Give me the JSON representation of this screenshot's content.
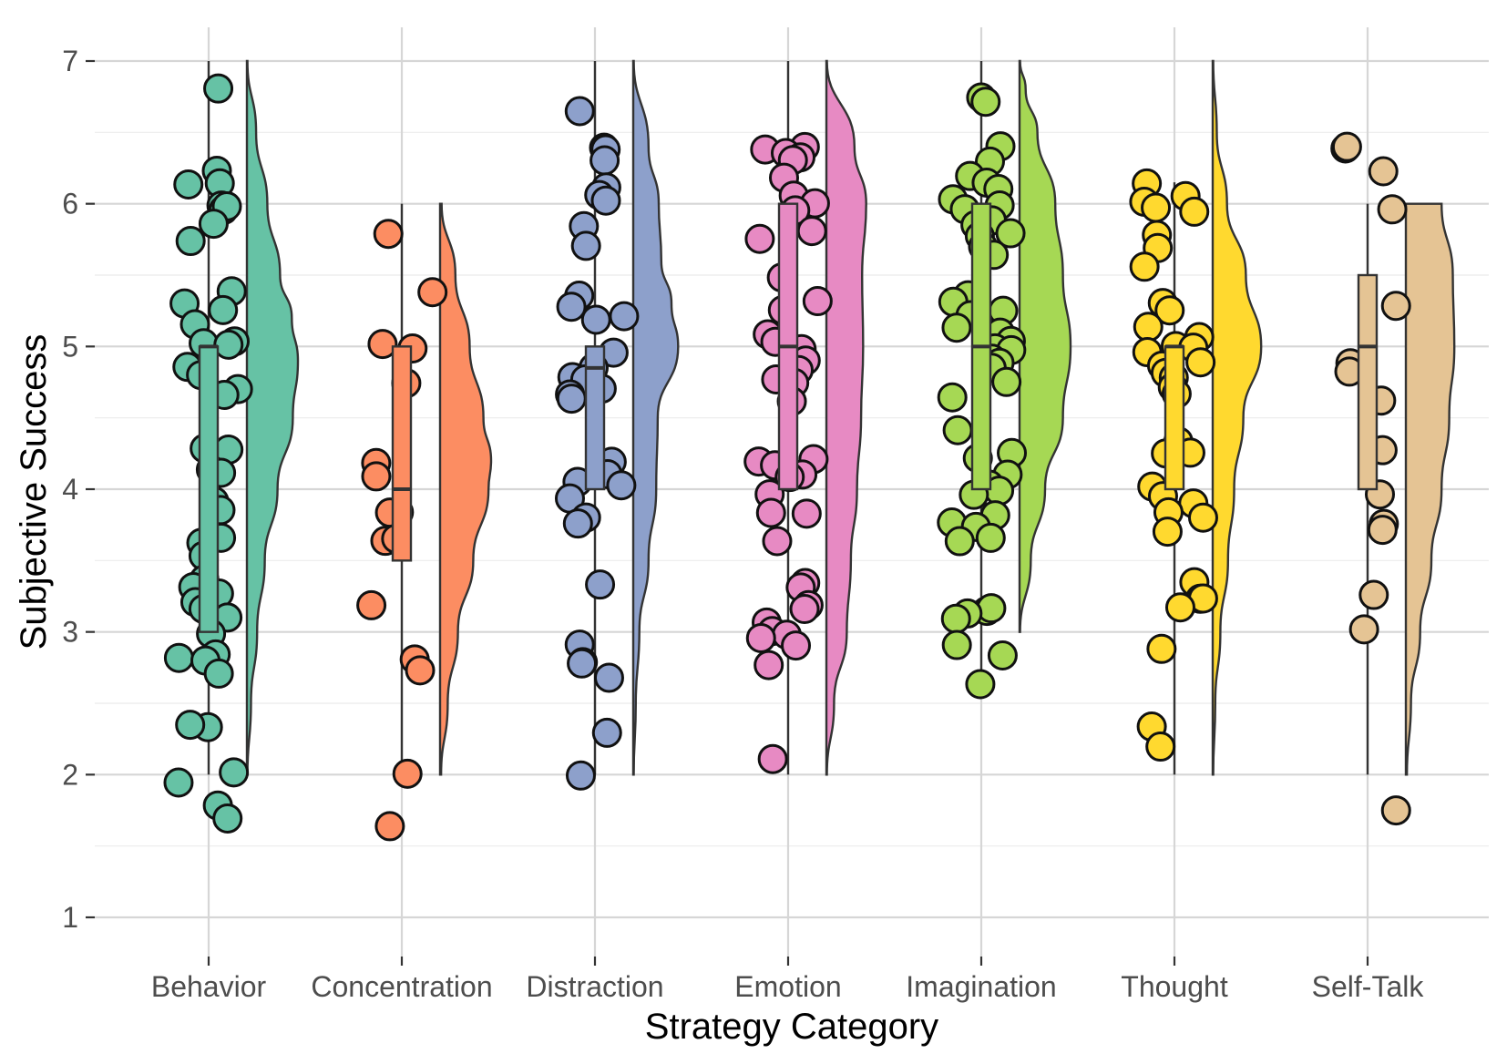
{
  "chart_data": {
    "type": "raincloud",
    "xlabel": "Strategy Category",
    "ylabel": "Subjective Success",
    "ylim": [
      0.7,
      7.0
    ],
    "yticks": [
      1,
      2,
      3,
      4,
      5,
      6,
      7
    ],
    "grid": true,
    "categories": [
      {
        "name": "Behavior",
        "color": "#66c2a5",
        "box": {
          "min": 2.0,
          "q1": 3.0,
          "median": 5.0,
          "q3": 5.0,
          "max": 7.0
        },
        "points": [
          6.8,
          6.25,
          6.15,
          6.15,
          6.0,
          5.95,
          5.97,
          5.85,
          5.75,
          5.4,
          5.3,
          5.25,
          5.15,
          5.05,
          5.02,
          5.0,
          4.85,
          4.8,
          4.7,
          4.65,
          4.3,
          4.27,
          4.15,
          4.1,
          3.9,
          3.85,
          3.65,
          3.62,
          3.55,
          3.35,
          3.3,
          3.25,
          3.2,
          3.15,
          3.1,
          3.0,
          2.85,
          2.82,
          2.8,
          2.7,
          2.35,
          2.35,
          2.02,
          1.95,
          1.78,
          1.7
        ],
        "density": [
          [
            2.0,
            0.01
          ],
          [
            2.5,
            0.08
          ],
          [
            3.0,
            0.2
          ],
          [
            3.5,
            0.35
          ],
          [
            4.0,
            0.6
          ],
          [
            4.5,
            0.9
          ],
          [
            4.9,
            1.0
          ],
          [
            5.2,
            0.88
          ],
          [
            5.5,
            0.65
          ],
          [
            6.0,
            0.4
          ],
          [
            6.5,
            0.18
          ],
          [
            7.0,
            0.01
          ]
        ]
      },
      {
        "name": "Concentration",
        "color": "#fc8d62",
        "box": {
          "min": 2.0,
          "q1": 3.5,
          "median": 4.0,
          "q3": 5.0,
          "max": 6.0
        },
        "points": [
          5.8,
          5.38,
          5.02,
          5.0,
          4.75,
          4.2,
          4.08,
          3.85,
          3.85,
          3.65,
          3.65,
          3.18,
          2.82,
          2.75,
          2.02,
          1.62
        ],
        "density": [
          [
            2.0,
            0.02
          ],
          [
            2.5,
            0.15
          ],
          [
            3.0,
            0.35
          ],
          [
            3.5,
            0.65
          ],
          [
            4.0,
            0.95
          ],
          [
            4.2,
            1.0
          ],
          [
            4.5,
            0.85
          ],
          [
            5.0,
            0.58
          ],
          [
            5.5,
            0.3
          ],
          [
            6.0,
            0.03
          ]
        ]
      },
      {
        "name": "Distraction",
        "color": "#8da0cb",
        "box": {
          "min": 2.0,
          "q1": 4.0,
          "median": 4.85,
          "q3": 5.0,
          "max": 7.0
        },
        "points": [
          6.65,
          6.4,
          6.38,
          6.32,
          6.1,
          6.05,
          6.02,
          5.85,
          5.7,
          5.35,
          5.28,
          5.22,
          5.2,
          4.95,
          4.85,
          4.8,
          4.75,
          4.7,
          4.65,
          4.62,
          4.2,
          4.1,
          4.05,
          4.02,
          3.95,
          3.82,
          3.75,
          3.35,
          2.92,
          2.8,
          2.78,
          2.68,
          2.3,
          1.98
        ],
        "density": [
          [
            2.0,
            0.01
          ],
          [
            2.5,
            0.05
          ],
          [
            3.0,
            0.12
          ],
          [
            3.5,
            0.3
          ],
          [
            4.0,
            0.45
          ],
          [
            4.5,
            0.48
          ],
          [
            5.0,
            0.88
          ],
          [
            5.3,
            0.75
          ],
          [
            5.6,
            0.55
          ],
          [
            6.0,
            0.5
          ],
          [
            6.4,
            0.3
          ],
          [
            7.0,
            0.01
          ]
        ]
      },
      {
        "name": "Emotion",
        "color": "#e78ac3",
        "box": {
          "min": 2.0,
          "q1": 4.0,
          "median": 5.0,
          "q3": 6.0,
          "max": 7.0
        },
        "points": [
          6.38,
          6.38,
          6.35,
          6.33,
          6.3,
          6.18,
          6.05,
          6.02,
          5.95,
          5.8,
          5.75,
          5.5,
          5.3,
          5.25,
          5.1,
          5.05,
          5.0,
          4.9,
          4.85,
          4.78,
          4.75,
          4.6,
          4.22,
          4.2,
          4.18,
          4.12,
          4.1,
          3.95,
          3.85,
          3.82,
          3.65,
          3.35,
          3.3,
          3.2,
          3.15,
          3.05,
          3.0,
          2.98,
          2.95,
          2.92,
          2.75,
          2.12
        ],
        "density": [
          [
            2.0,
            0.01
          ],
          [
            2.5,
            0.15
          ],
          [
            3.0,
            0.4
          ],
          [
            3.5,
            0.48
          ],
          [
            4.0,
            0.6
          ],
          [
            4.5,
            0.68
          ],
          [
            5.0,
            0.72
          ],
          [
            5.5,
            0.7
          ],
          [
            6.0,
            0.78
          ],
          [
            6.4,
            0.55
          ],
          [
            7.0,
            0.01
          ]
        ]
      },
      {
        "name": "Imagination",
        "color": "#a6d854",
        "box": {
          "min": 2.65,
          "q1": 4.0,
          "median": 5.0,
          "q3": 6.0,
          "max": 7.0
        },
        "points": [
          6.75,
          6.7,
          6.4,
          6.3,
          6.18,
          6.15,
          6.1,
          6.05,
          6.0,
          5.95,
          5.9,
          5.85,
          5.8,
          5.78,
          5.7,
          5.65,
          5.35,
          5.3,
          5.25,
          5.2,
          5.15,
          5.1,
          5.05,
          5.0,
          4.98,
          4.9,
          4.88,
          4.85,
          4.75,
          4.65,
          4.4,
          4.25,
          4.2,
          4.1,
          4.05,
          4.0,
          3.95,
          3.8,
          3.78,
          3.75,
          3.65,
          3.62,
          3.15,
          3.15,
          3.12,
          3.08,
          2.9,
          2.82,
          2.65
        ],
        "density": [
          [
            3.0,
            0.01
          ],
          [
            3.5,
            0.22
          ],
          [
            4.0,
            0.5
          ],
          [
            4.5,
            0.85
          ],
          [
            5.0,
            1.0
          ],
          [
            5.5,
            0.85
          ],
          [
            6.0,
            0.7
          ],
          [
            6.5,
            0.35
          ],
          [
            6.8,
            0.12
          ],
          [
            7.0,
            0.01
          ]
        ]
      },
      {
        "name": "Thought",
        "color": "#ffd92f",
        "box": {
          "min": 2.0,
          "q1": 4.0,
          "median": 5.0,
          "q3": 5.0,
          "max": 6.15
        },
        "points": [
          6.15,
          6.05,
          6.0,
          5.98,
          5.95,
          5.78,
          5.7,
          5.55,
          5.3,
          5.25,
          5.12,
          5.05,
          5.02,
          4.98,
          4.95,
          4.9,
          4.88,
          4.85,
          4.82,
          4.78,
          4.72,
          4.65,
          4.35,
          4.27,
          4.25,
          4.02,
          3.95,
          3.9,
          3.85,
          3.8,
          3.7,
          3.35,
          3.25,
          3.22,
          3.18,
          2.88,
          2.35,
          2.18
        ],
        "density": [
          [
            2.0,
            0.01
          ],
          [
            2.5,
            0.05
          ],
          [
            3.0,
            0.15
          ],
          [
            3.5,
            0.3
          ],
          [
            4.0,
            0.42
          ],
          [
            4.5,
            0.6
          ],
          [
            5.0,
            0.95
          ],
          [
            5.5,
            0.65
          ],
          [
            6.0,
            0.28
          ],
          [
            6.5,
            0.08
          ],
          [
            7.0,
            0.01
          ]
        ]
      },
      {
        "name": "Self-Talk",
        "color": "#e5c494",
        "box": {
          "min": 2.0,
          "q1": 4.0,
          "median": 5.0,
          "q3": 5.5,
          "max": 6.0
        },
        "points": [
          6.4,
          6.38,
          6.22,
          5.95,
          5.28,
          4.88,
          4.82,
          4.62,
          4.28,
          3.98,
          3.75,
          3.7,
          3.25,
          3.0,
          1.75
        ],
        "density": [
          [
            2.0,
            0.02
          ],
          [
            2.5,
            0.1
          ],
          [
            3.0,
            0.28
          ],
          [
            3.5,
            0.5
          ],
          [
            4.0,
            0.7
          ],
          [
            4.5,
            0.85
          ],
          [
            5.0,
            0.95
          ],
          [
            5.5,
            0.92
          ],
          [
            6.0,
            0.7
          ]
        ]
      }
    ]
  }
}
